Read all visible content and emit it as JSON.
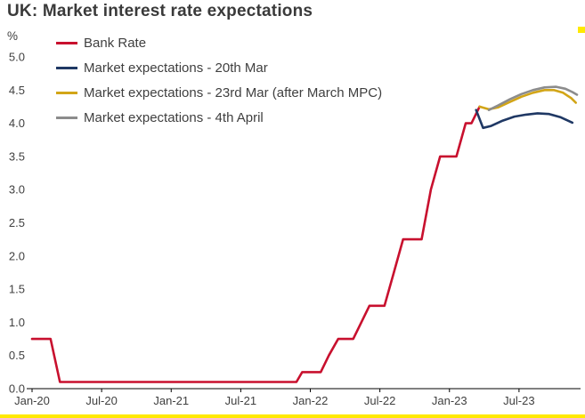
{
  "title": "UK: Market interest rate expectations",
  "unit_label": "%",
  "accent_color": "#ffe900",
  "legend": {
    "items": [
      {
        "label": "Bank Rate",
        "color": "#c8102e"
      },
      {
        "label": "Market expectations - 20th Mar",
        "color": "#1f3864"
      },
      {
        "label": "Market expectations - 23rd Mar (after March MPC)",
        "color": "#d2a517"
      },
      {
        "label": "Market expectations - 4th April",
        "color": "#8c8c8c"
      }
    ]
  },
  "chart_data": {
    "type": "line",
    "title": "UK: Market interest rate expectations",
    "xlabel": "",
    "ylabel": "%",
    "grid": false,
    "legend_position": "top-left",
    "ylim": [
      0,
      5
    ],
    "xlim_months": [
      0,
      47
    ],
    "x_axis_note": "months since Jan-2020",
    "x_ticks": [
      {
        "month": 0,
        "label": "Jan-20"
      },
      {
        "month": 6,
        "label": "Jul-20"
      },
      {
        "month": 12,
        "label": "Jan-21"
      },
      {
        "month": 18,
        "label": "Jul-21"
      },
      {
        "month": 24,
        "label": "Jan-22"
      },
      {
        "month": 30,
        "label": "Jul-22"
      },
      {
        "month": 36,
        "label": "Jan-23"
      },
      {
        "month": 42,
        "label": "Jul-23"
      }
    ],
    "y_ticks": [
      {
        "value": 0.0,
        "label": "0.0"
      },
      {
        "value": 0.5,
        "label": "0.5"
      },
      {
        "value": 1.0,
        "label": "1.0"
      },
      {
        "value": 1.5,
        "label": "1.5"
      },
      {
        "value": 2.0,
        "label": "2.0"
      },
      {
        "value": 2.5,
        "label": "2.5"
      },
      {
        "value": 3.0,
        "label": "3.0"
      },
      {
        "value": 3.5,
        "label": "3.5"
      },
      {
        "value": 4.0,
        "label": "4.0"
      },
      {
        "value": 4.5,
        "label": "4.5"
      },
      {
        "value": 5.0,
        "label": "5.0"
      }
    ],
    "series": [
      {
        "name": "Bank Rate",
        "key": "bank-rate",
        "color": "#c8102e",
        "width": 2.6,
        "points": [
          [
            0,
            0.75
          ],
          [
            1.6,
            0.75
          ],
          [
            2.4,
            0.1
          ],
          [
            22.8,
            0.1
          ],
          [
            23.3,
            0.25
          ],
          [
            24.9,
            0.25
          ],
          [
            25.6,
            0.5
          ],
          [
            26.4,
            0.75
          ],
          [
            27.7,
            0.75
          ],
          [
            28.4,
            1.0
          ],
          [
            29.1,
            1.25
          ],
          [
            30.4,
            1.25
          ],
          [
            31.2,
            1.75
          ],
          [
            32.0,
            2.25
          ],
          [
            33.6,
            2.25
          ],
          [
            34.4,
            3.0
          ],
          [
            35.2,
            3.5
          ],
          [
            36.6,
            3.5
          ],
          [
            37.4,
            4.0
          ],
          [
            37.9,
            4.0
          ],
          [
            38.6,
            4.25
          ]
        ]
      },
      {
        "name": "Market expectations - 20th Mar",
        "key": "expectations-20th-mar",
        "color": "#1f3864",
        "width": 2.6,
        "points": [
          [
            38.3,
            4.2
          ],
          [
            38.9,
            3.93
          ],
          [
            39.6,
            3.96
          ],
          [
            40.6,
            4.04
          ],
          [
            41.6,
            4.1
          ],
          [
            42.6,
            4.13
          ],
          [
            43.6,
            4.15
          ],
          [
            44.6,
            4.14
          ],
          [
            45.6,
            4.09
          ],
          [
            46.6,
            4.01
          ]
        ]
      },
      {
        "name": "Market expectations - 23rd Mar (after March MPC)",
        "key": "expectations-23rd-mar",
        "color": "#d2a517",
        "width": 2.6,
        "points": [
          [
            38.6,
            4.25
          ],
          [
            39.4,
            4.21
          ],
          [
            40.2,
            4.24
          ],
          [
            41.2,
            4.32
          ],
          [
            42.2,
            4.4
          ],
          [
            43.2,
            4.46
          ],
          [
            44.2,
            4.5
          ],
          [
            45.0,
            4.5
          ],
          [
            45.8,
            4.46
          ],
          [
            46.5,
            4.38
          ],
          [
            46.9,
            4.31
          ]
        ]
      },
      {
        "name": "Market expectations - 4th April",
        "key": "expectations-4th-april",
        "color": "#8c8c8c",
        "width": 2.6,
        "points": [
          [
            39.4,
            4.2
          ],
          [
            40.2,
            4.27
          ],
          [
            41.2,
            4.36
          ],
          [
            42.2,
            4.44
          ],
          [
            43.2,
            4.5
          ],
          [
            44.2,
            4.54
          ],
          [
            45.2,
            4.55
          ],
          [
            46.0,
            4.52
          ],
          [
            46.6,
            4.47
          ],
          [
            47.0,
            4.43
          ]
        ]
      }
    ]
  }
}
